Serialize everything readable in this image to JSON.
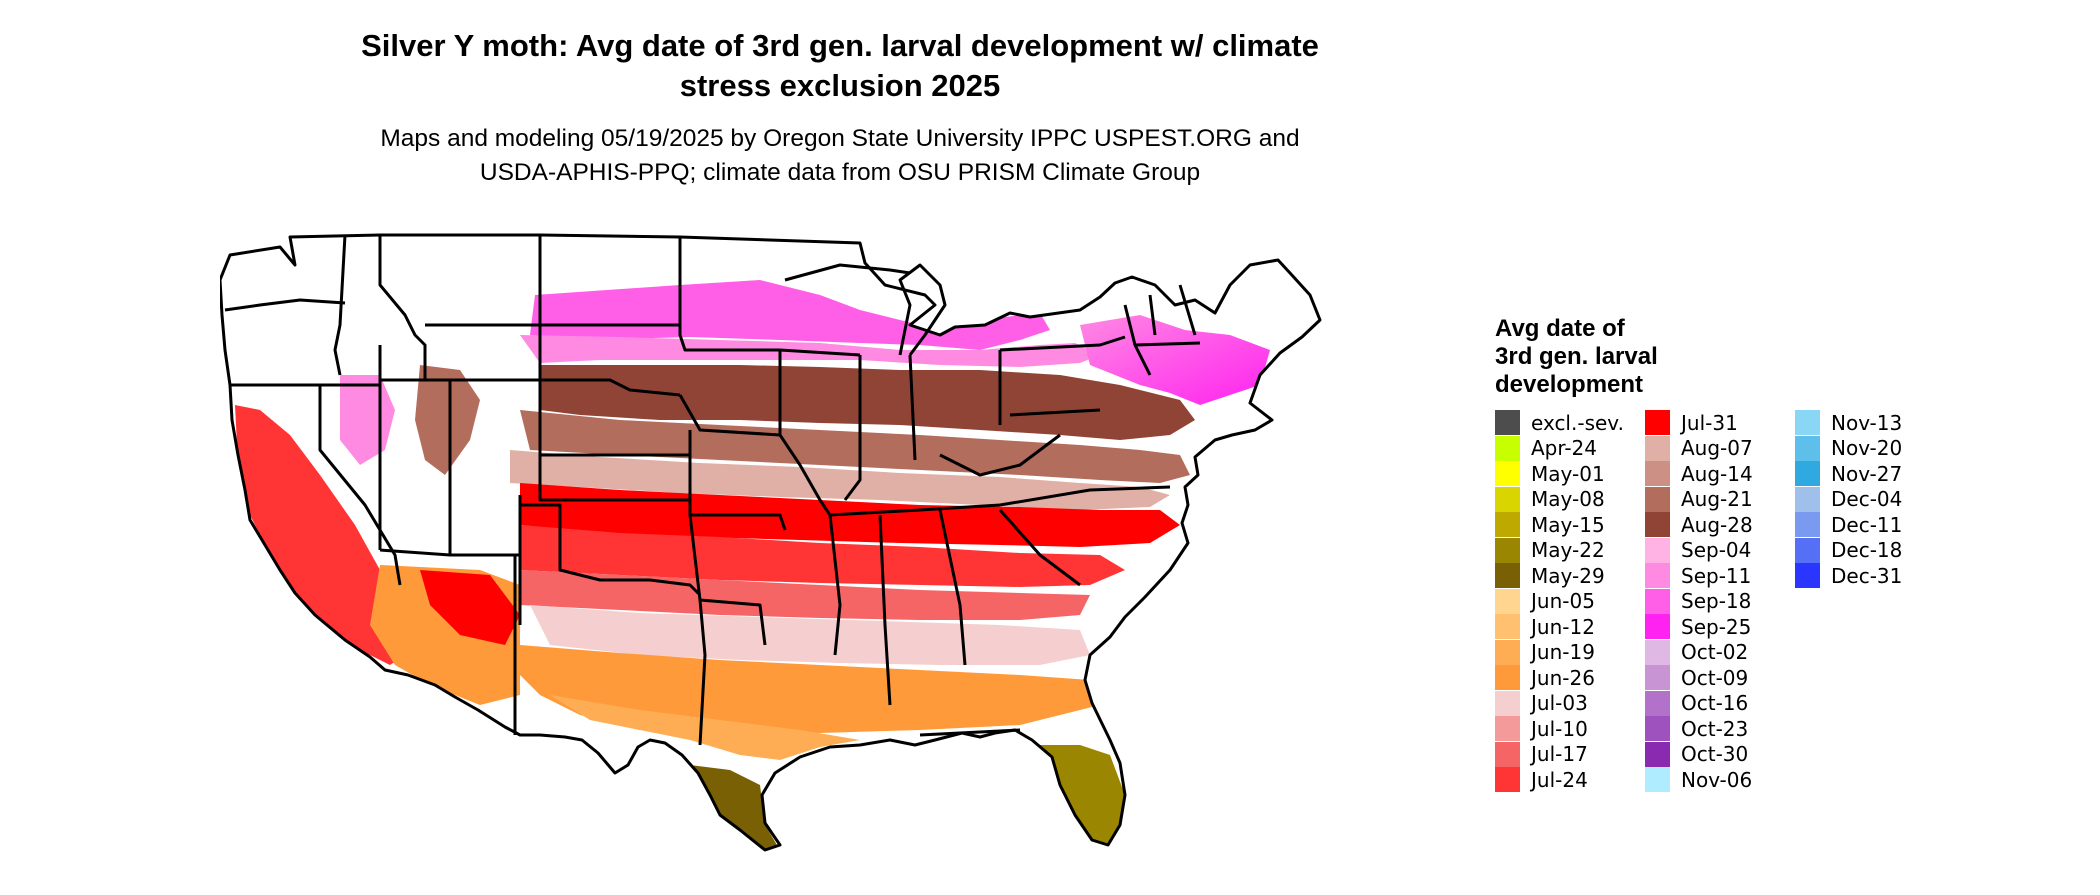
{
  "title_line1": "Silver Y moth: Avg date of 3rd gen. larval development w/ climate",
  "title_line2": "stress exclusion 2025",
  "subtitle_line1": "Maps and modeling 05/19/2025 by Oregon State University IPPC USPEST.ORG and",
  "subtitle_line2": "USDA-APHIS-PPQ; climate data from OSU PRISM Climate Group",
  "legend": {
    "title_line1": "Avg date of",
    "title_line2": "3rd gen. larval",
    "title_line3": "development",
    "items": [
      {
        "label": "excl.-sev.",
        "color": "#4d4d4d"
      },
      {
        "label": "Apr-24",
        "color": "#c8ff00"
      },
      {
        "label": "May-01",
        "color": "#ffff00"
      },
      {
        "label": "May-08",
        "color": "#d9d500"
      },
      {
        "label": "May-15",
        "color": "#bda900"
      },
      {
        "label": "May-22",
        "color": "#9a8600"
      },
      {
        "label": "May-29",
        "color": "#7a6005"
      },
      {
        "label": "Jun-05",
        "color": "#ffd590"
      },
      {
        "label": "Jun-12",
        "color": "#ffc070"
      },
      {
        "label": "Jun-19",
        "color": "#ffad55"
      },
      {
        "label": "Jun-26",
        "color": "#ff9a3a"
      },
      {
        "label": "Jul-03",
        "color": "#f5cfcf"
      },
      {
        "label": "Jul-10",
        "color": "#f59a9a"
      },
      {
        "label": "Jul-17",
        "color": "#f56565"
      },
      {
        "label": "Jul-24",
        "color": "#ff3535"
      },
      {
        "label": "Jul-31",
        "color": "#ff0000"
      },
      {
        "label": "Aug-07",
        "color": "#e0b0a6"
      },
      {
        "label": "Aug-14",
        "color": "#cc9184"
      },
      {
        "label": "Aug-21",
        "color": "#b36d5d"
      },
      {
        "label": "Aug-28",
        "color": "#8f4436"
      },
      {
        "label": "Sep-04",
        "color": "#ffb2e4"
      },
      {
        "label": "Sep-11",
        "color": "#ff8ae2"
      },
      {
        "label": "Sep-18",
        "color": "#ff5ee6"
      },
      {
        "label": "Sep-25",
        "color": "#ff22f0"
      },
      {
        "label": "Oct-02",
        "color": "#dfb8e4"
      },
      {
        "label": "Oct-09",
        "color": "#c894d4"
      },
      {
        "label": "Oct-16",
        "color": "#b372c9"
      },
      {
        "label": "Oct-23",
        "color": "#9e52bd"
      },
      {
        "label": "Oct-30",
        "color": "#8a2ab0"
      },
      {
        "label": "Nov-06",
        "color": "#b0ecff"
      },
      {
        "label": "Nov-13",
        "color": "#8ad6f5"
      },
      {
        "label": "Nov-20",
        "color": "#5ec0ea"
      },
      {
        "label": "Nov-27",
        "color": "#30a8e0"
      },
      {
        "label": "Dec-04",
        "color": "#9ec0ea"
      },
      {
        "label": "Dec-11",
        "color": "#7a9af0"
      },
      {
        "label": "Dec-18",
        "color": "#5570f5"
      },
      {
        "label": "Dec-31",
        "color": "#2a35ff"
      }
    ]
  }
}
